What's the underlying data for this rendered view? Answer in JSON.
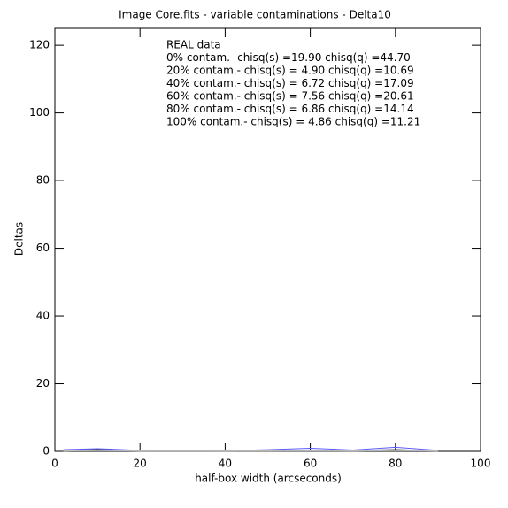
{
  "chart_data": {
    "type": "line",
    "title": "Image Core.fits - variable contaminations - Delta10",
    "x_label": "half-box width (arcseconds)",
    "y_label": "Deltas",
    "x": [
      2,
      10,
      20,
      30,
      40,
      50,
      60,
      70,
      80,
      90
    ],
    "series": [
      {
        "name": "REAL data",
        "color": "#5a5aff",
        "values": [
          0.5,
          0.8,
          0.3,
          0.4,
          0.2,
          0.5,
          0.9,
          0.4,
          1.2,
          0.3
        ]
      },
      {
        "name": "0% contam.- chisq(s) =19.90 chisq(q) =44.70",
        "color": "#000000",
        "values": [
          0.3,
          0.5,
          0.2,
          0.3,
          0.2,
          0.3,
          0.4,
          0.3,
          0.5,
          0.2
        ]
      },
      {
        "name": "20% contam.- chisq(s) = 4.90 chisq(q) =10.69",
        "color": "#333333",
        "values": [
          0.2,
          0.4,
          0.2,
          0.2,
          0.1,
          0.2,
          0.3,
          0.2,
          0.4,
          0.2
        ]
      },
      {
        "name": "40% contam.- chisq(s) = 6.72 chisq(q) =17.09",
        "color": "#555555",
        "values": [
          0.2,
          0.3,
          0.1,
          0.2,
          0.1,
          0.2,
          0.3,
          0.2,
          0.3,
          0.1
        ]
      },
      {
        "name": "60% contam.- chisq(s) = 7.56 chisq(q) =20.61",
        "color": "#777777",
        "values": [
          0.1,
          0.3,
          0.1,
          0.1,
          0.1,
          0.2,
          0.2,
          0.1,
          0.3,
          0.1
        ]
      },
      {
        "name": "80% contam.- chisq(s) = 6.86 chisq(q) =14.14",
        "color": "#999999",
        "values": [
          0.1,
          0.2,
          0.1,
          0.1,
          0.1,
          0.1,
          0.2,
          0.1,
          0.2,
          0.1
        ]
      },
      {
        "name": "100% contam.- chisq(s) = 4.86 chisq(q) =11.21",
        "color": "#bbbbbb",
        "values": [
          0.1,
          0.2,
          0.1,
          0.1,
          0.1,
          0.1,
          0.1,
          0.1,
          0.2,
          0.1
        ]
      }
    ],
    "xlim": [
      0,
      100
    ],
    "xticks": [
      0,
      20,
      40,
      60,
      80,
      100
    ],
    "ylim": [
      0,
      125
    ],
    "yticks": [
      0,
      20,
      40,
      60,
      80,
      100,
      120
    ],
    "grid": false
  }
}
